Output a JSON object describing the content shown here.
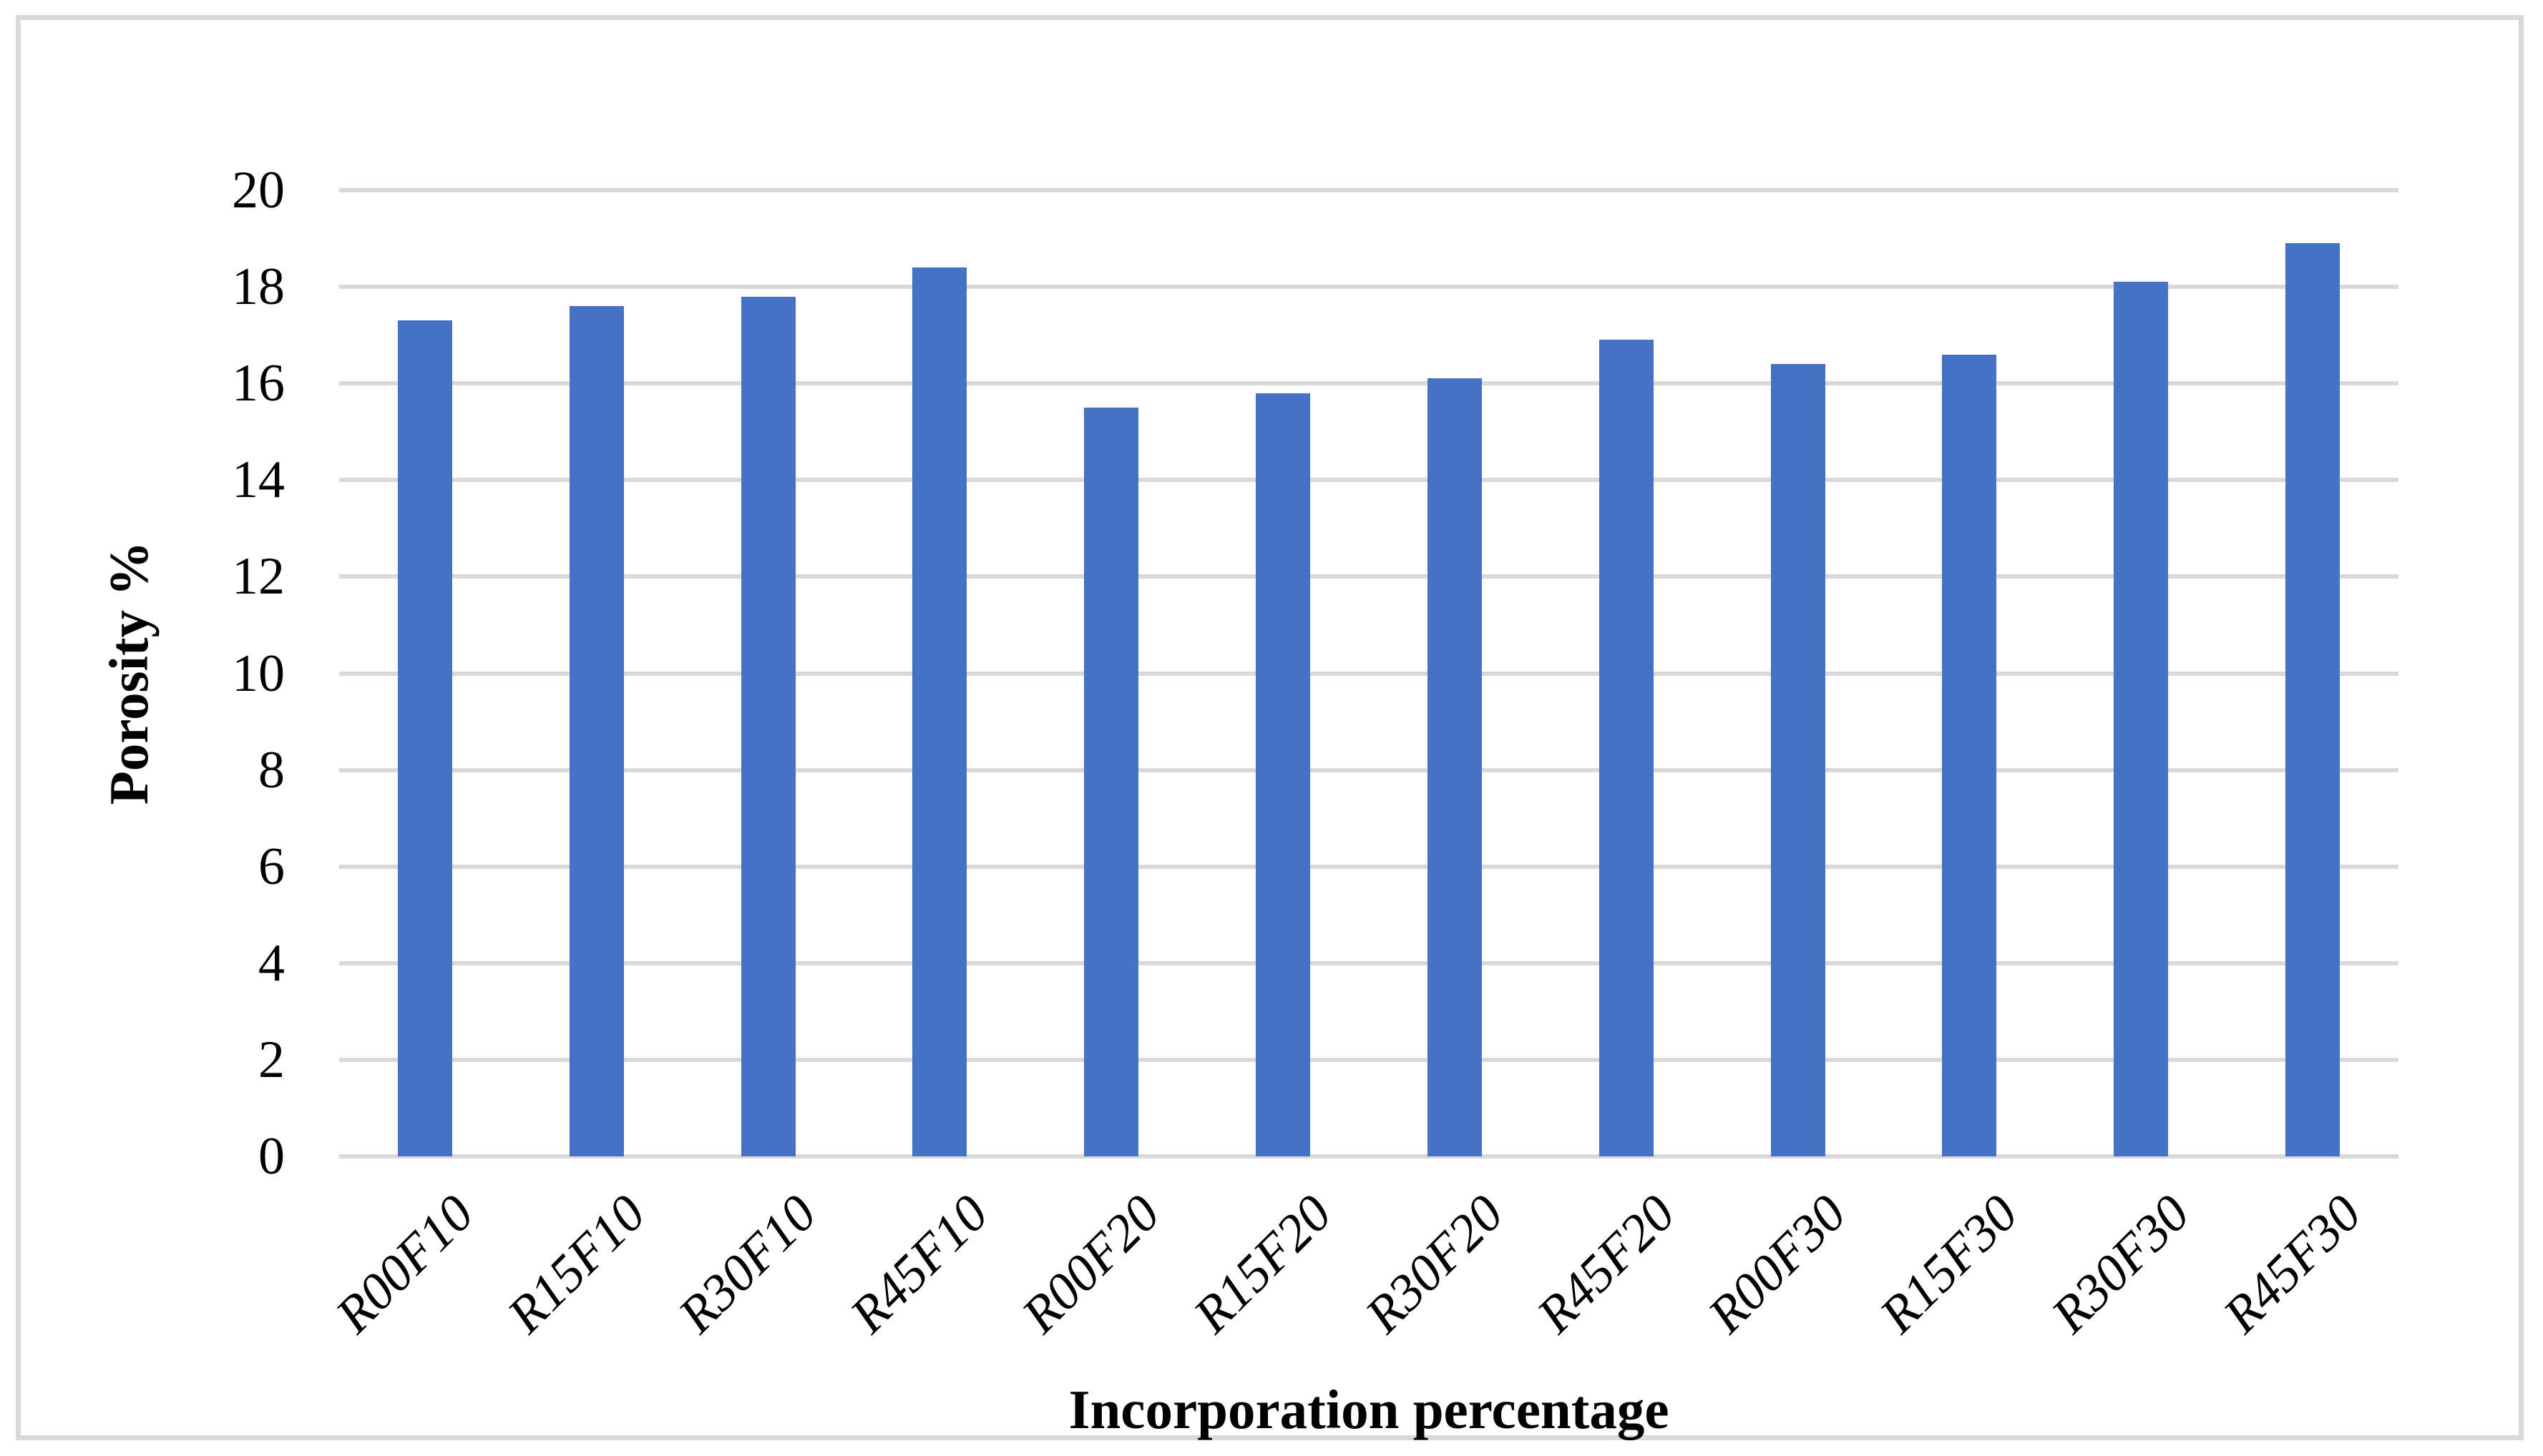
{
  "chart_data": {
    "type": "bar",
    "title": "",
    "categories": [
      "R00F10",
      "R15F10",
      "R30F10",
      "R45F10",
      "R00F20",
      "R15F20",
      "R30F20",
      "R45F20",
      "R00F30",
      "R15F30",
      "R30F30",
      "R45F30"
    ],
    "values": [
      17.3,
      17.6,
      17.8,
      18.4,
      15.5,
      15.8,
      16.1,
      16.9,
      16.4,
      16.6,
      18.1,
      18.9
    ],
    "xlabel": "Incorporation percentage",
    "ylabel": "Porosity %",
    "ylim": [
      0,
      20
    ],
    "ytick_step": 2,
    "yticks": [
      "0",
      "2",
      "4",
      "6",
      "8",
      "10",
      "12",
      "14",
      "16",
      "18",
      "20"
    ],
    "grid": true,
    "legend": false,
    "bar_color": "#4472C4",
    "gridline_color": "#D9D9D9",
    "frame_color": "#D9D9D9",
    "text_color": "#000000",
    "background_color": "#FFFFFF"
  }
}
